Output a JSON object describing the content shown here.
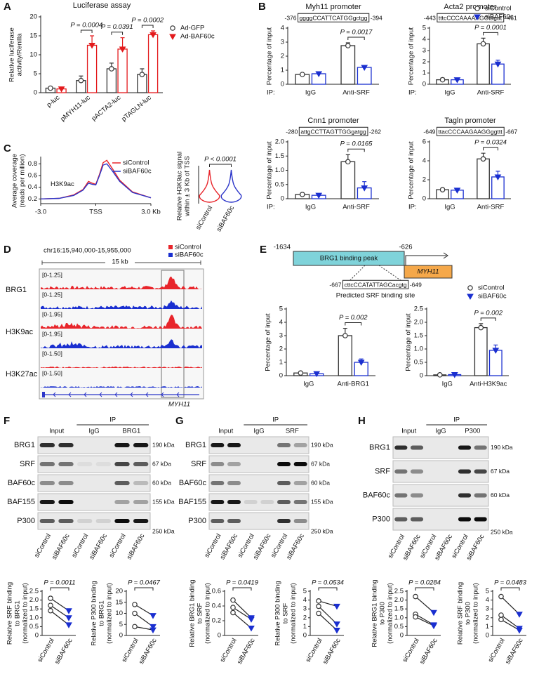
{
  "chart_data": [
    {
      "type": "bar",
      "panel": "A",
      "title": "Luciferase assay",
      "y_label": [
        "Relative luciferase",
        "activity/Renilla"
      ],
      "categories": [
        "p-luc",
        "pMYH11-luc",
        "pACTA2-luc",
        "pTAGLN-luc"
      ],
      "series": [
        {
          "name": "Ad-GFP",
          "color": "#333333",
          "marker": "circle",
          "values": [
            1.2,
            3.2,
            6.3,
            4.8
          ],
          "errors": [
            0.3,
            1.2,
            1.5,
            1.5
          ]
        },
        {
          "name": "Ad-BAF60c",
          "color": "#e31a1c",
          "marker": "triangle",
          "values": [
            1.0,
            12.5,
            11.5,
            15.3
          ],
          "errors": [
            0.2,
            2.5,
            3.0,
            1.0
          ]
        }
      ],
      "ylim": [
        0,
        20
      ],
      "yticks": [
        0,
        5,
        10,
        15,
        20
      ],
      "annotations": [
        "P = 0.0004",
        "P = 0.0391",
        "P = 0.0002"
      ],
      "legend": true
    },
    {
      "type": "bar",
      "panel": "B",
      "title": "Myh11 promoter",
      "sequence": [
        "-376",
        "ggggCCATTCATGGgctgg",
        "-394"
      ],
      "x_prefix": "IP:",
      "y_label": [
        "Percentage of input"
      ],
      "categories": [
        "IgG",
        "Anti-SRF"
      ],
      "series": [
        {
          "color": "#333333",
          "marker": "circle",
          "values": [
            0.7,
            2.75
          ],
          "errors": [
            0.03,
            0.2
          ]
        },
        {
          "color": "#1a2fd0",
          "marker": "triangle",
          "values": [
            0.75,
            1.2
          ],
          "errors": [
            0.1,
            0.1
          ]
        }
      ],
      "ylim": [
        0,
        4
      ],
      "yticks": [
        0,
        1,
        2,
        3,
        4
      ],
      "annotations": [
        "P = 0.0017"
      ],
      "legend": false
    },
    {
      "type": "bar",
      "title": "Acta2 promoter",
      "sequence": [
        "-443",
        "tttcCCCAAAAAGGtagat",
        "-461"
      ],
      "x_prefix": "IP:",
      "y_label": [
        "Percentage of input"
      ],
      "categories": [
        "IgG",
        "Anti-SRF"
      ],
      "series": [
        {
          "name": "siControl",
          "color": "#333333",
          "marker": "circle",
          "values": [
            0.4,
            3.6
          ],
          "errors": [
            0.15,
            0.5
          ]
        },
        {
          "name": "siBAF60c",
          "color": "#1a2fd0",
          "marker": "triangle",
          "values": [
            0.4,
            1.8
          ],
          "errors": [
            0.15,
            0.35
          ]
        }
      ],
      "ylim": [
        0,
        5
      ],
      "yticks": [
        0,
        1,
        2,
        3,
        4,
        5
      ],
      "annotations": [
        "P = 0.0001"
      ],
      "legend": true
    },
    {
      "type": "bar",
      "title": "Cnn1 promoter",
      "sequence": [
        "-280",
        "attgCCTTAGTTGGgatgg",
        "-262"
      ],
      "x_prefix": "IP:",
      "y_label": [
        "Percentage of input"
      ],
      "categories": [
        "IgG",
        "Anti-SRF"
      ],
      "series": [
        {
          "color": "#333333",
          "marker": "circle",
          "values": [
            0.15,
            1.3
          ],
          "errors": [
            0.05,
            0.25
          ]
        },
        {
          "color": "#1a2fd0",
          "marker": "triangle",
          "values": [
            0.12,
            0.38
          ],
          "errors": [
            0.04,
            0.22
          ]
        }
      ],
      "ylim": [
        0,
        2
      ],
      "yticks": [
        0,
        0.5,
        {
          "value": 1,
          "label": "1.0"
        },
        1.5,
        {
          "value": 2,
          "label": "2.0"
        }
      ],
      "annotations": [
        "P = 0.0165"
      ],
      "legend": false
    },
    {
      "type": "bar",
      "title": "Tagln promoter",
      "sequence": [
        "-649",
        "ttacCCCAAGAAGGggttt",
        "-667"
      ],
      "x_prefix": "IP:",
      "y_label": [
        "Percentage of input"
      ],
      "categories": [
        "IgG",
        "Anti-SRF"
      ],
      "series": [
        {
          "color": "#333333",
          "marker": "circle",
          "values": [
            0.95,
            4.2
          ],
          "errors": [
            0.15,
            0.6
          ]
        },
        {
          "color": "#1a2fd0",
          "marker": "triangle",
          "values": [
            0.9,
            2.3
          ],
          "errors": [
            0.2,
            0.6
          ]
        }
      ],
      "ylim": [
        0,
        6
      ],
      "yticks": [
        0,
        2,
        4,
        6
      ],
      "annotations": [
        "P = 0.0324"
      ],
      "legend": false
    },
    {
      "type": "line",
      "panel": "C",
      "y_label": [
        "Average coverage",
        "(reads per million)"
      ],
      "x": [
        -3,
        -2,
        -1.2,
        -0.7,
        -0.4,
        -0.2,
        0,
        0.2,
        0.4,
        0.6,
        0.9,
        1.3,
        2,
        3
      ],
      "series": [
        {
          "name": "siControl",
          "color": "#e8252b",
          "values": [
            0.2,
            0.21,
            0.27,
            0.36,
            0.5,
            0.47,
            0.45,
            0.62,
            0.82,
            0.86,
            0.72,
            0.52,
            0.32,
            0.22
          ]
        },
        {
          "name": "siBAF60c",
          "color": "#2b35c9",
          "values": [
            0.2,
            0.21,
            0.26,
            0.35,
            0.47,
            0.45,
            0.44,
            0.6,
            0.78,
            0.8,
            0.68,
            0.5,
            0.31,
            0.22
          ]
        }
      ],
      "xlim": [
        -3,
        3
      ],
      "xticks": [
        {
          "value": -3,
          "label": "-3.0"
        },
        {
          "value": 0,
          "label": "TSS"
        },
        {
          "value": 3,
          "label": "3.0 Kb"
        }
      ],
      "ylim": [
        0.12,
        0.9
      ],
      "yticks": [
        0.2,
        0.4,
        0.6,
        0.8
      ],
      "annotations": [
        "H3K9ac"
      ],
      "legend": true
    },
    {
      "type": "violin",
      "y_label": [
        "Relative H3K9ac signal",
        "within ± 3 Kb of TSS"
      ],
      "categories": [
        "siControl",
        "siBAF60c"
      ],
      "colors": [
        "#e8252b",
        "#2b35c9"
      ],
      "annotations": [
        "P < 0.0001"
      ]
    },
    {
      "type": "bar",
      "y_label": [
        "Percentage of input"
      ],
      "categories": [
        "IgG",
        "Anti-BRG1"
      ],
      "series": [
        {
          "color": "#333333",
          "marker": "circle",
          "values": [
            0.2,
            3.0
          ],
          "errors": [
            0.05,
            0.55
          ]
        },
        {
          "color": "#1a2fd0",
          "marker": "triangle",
          "values": [
            0.15,
            1.0
          ],
          "errors": [
            0.03,
            0.25
          ]
        }
      ],
      "ylim": [
        0,
        5
      ],
      "yticks": [
        0,
        1,
        2,
        3,
        4,
        5
      ],
      "annotations": [
        "P = 0.002"
      ],
      "legend": false
    },
    {
      "type": "bar",
      "y_label": [
        "Percentage of input"
      ],
      "categories": [
        "IgG",
        "Anti-H3K9ac"
      ],
      "series": [
        {
          "name": "siControl",
          "color": "#333333",
          "marker": "circle",
          "values": [
            0.03,
            1.8
          ],
          "errors": [
            0.01,
            0.15
          ]
        },
        {
          "name": "siBAF60c",
          "color": "#1a2fd0",
          "marker": "triangle",
          "values": [
            0.04,
            0.95
          ],
          "errors": [
            0.01,
            0.2
          ]
        }
      ],
      "ylim": [
        0,
        2.5
      ],
      "yticks": [
        0,
        0.5,
        {
          "value": 1,
          "label": "1.0"
        },
        1.5,
        {
          "value": 2,
          "label": "2.0"
        },
        2.5
      ],
      "annotations": [
        "P = 0.002"
      ],
      "legend": true
    },
    {
      "type": "paired",
      "y_label": [
        "Relative SRF binding",
        "to BRG1",
        "(normalized to input)"
      ],
      "categories": [
        "siControl",
        "siBAF60c"
      ],
      "category_colors": [
        "#333333",
        "#1a2fd0"
      ],
      "series": [
        {
          "values": [
            2.1,
            1.4
          ]
        },
        {
          "values": [
            1.7,
            1.0
          ]
        },
        {
          "values": [
            1.4,
            0.6
          ]
        }
      ],
      "ylim": [
        0,
        2.5
      ],
      "yticks": [
        0,
        0.5,
        {
          "value": 1,
          "label": "1.0"
        },
        1.5,
        {
          "value": 2,
          "label": "2.0"
        },
        2.5
      ],
      "annotations": [
        "P = 0.0011"
      ]
    },
    {
      "type": "paired",
      "y_label": [
        "Relative P300 binding",
        "to BRG1",
        "(normalized to input)"
      ],
      "categories": [
        "siControl",
        "siBAF60c"
      ],
      "category_colors": [
        "#333333",
        "#1a2fd0"
      ],
      "series": [
        {
          "values": [
            14,
            9
          ]
        },
        {
          "values": [
            10,
            4
          ]
        },
        {
          "values": [
            4,
            2.5
          ]
        }
      ],
      "ylim": [
        0,
        20
      ],
      "yticks": [
        0,
        5,
        10,
        15,
        20
      ],
      "annotations": [
        "P = 0.0467"
      ]
    },
    {
      "type": "paired",
      "y_label": [
        "Relative BRG1 binding",
        "to SRF",
        "(normalized to input)"
      ],
      "categories": [
        "siControl",
        "siBAF60c"
      ],
      "category_colors": [
        "#333333",
        "#1a2fd0"
      ],
      "series": [
        {
          "values": [
            0.48,
            0.24
          ]
        },
        {
          "values": [
            0.38,
            0.22
          ]
        },
        {
          "values": [
            0.31,
            0.1
          ]
        }
      ],
      "ylim": [
        0,
        0.6
      ],
      "yticks": [
        0,
        0.2,
        0.4,
        0.6
      ],
      "annotations": [
        "P = 0.0419"
      ]
    },
    {
      "type": "paired",
      "y_label": [
        "Relative P300 binding",
        "to SRF",
        "(normalized to input)"
      ],
      "categories": [
        "siControl",
        "siBAF60c"
      ],
      "category_colors": [
        "#333333",
        "#1a2fd0"
      ],
      "series": [
        {
          "values": [
            3.9,
            3.3
          ]
        },
        {
          "values": [
            3.3,
            1.3
          ]
        },
        {
          "values": [
            2.5,
            0.6
          ]
        }
      ],
      "ylim": [
        0,
        5
      ],
      "yticks": [
        0,
        1,
        2,
        3,
        4,
        5
      ],
      "annotations": [
        "P = 0.0534"
      ]
    },
    {
      "type": "paired",
      "y_label": [
        "Relative BRG1 binding",
        "to P300",
        "(normalized to input)"
      ],
      "categories": [
        "siControl",
        "siBAF60c"
      ],
      "category_colors": [
        "#333333",
        "#1a2fd0"
      ],
      "series": [
        {
          "values": [
            2.2,
            1.3
          ]
        },
        {
          "values": [
            1.2,
            0.6
          ]
        },
        {
          "values": [
            1.05,
            0.55
          ]
        }
      ],
      "ylim": [
        0,
        2.5
      ],
      "yticks": [
        0,
        0.5,
        {
          "value": 1,
          "label": "1.0"
        },
        1.5,
        {
          "value": 2,
          "label": "2.0"
        },
        2.5
      ],
      "annotations": [
        "P = 0.0284"
      ]
    },
    {
      "type": "paired",
      "y_label": [
        "Relative SRF binding",
        "to P300",
        "(normalized to input)"
      ],
      "categories": [
        "siControl",
        "siBAF60c"
      ],
      "category_colors": [
        "#333333",
        "#1a2fd0"
      ],
      "series": [
        {
          "values": [
            4.4,
            2.4
          ]
        },
        {
          "values": [
            2.3,
            0.8
          ]
        },
        {
          "values": [
            1.8,
            0.6
          ]
        }
      ],
      "ylim": [
        0,
        5
      ],
      "yticks": [
        0,
        1,
        2,
        3,
        4,
        5
      ],
      "annotations": [
        "P = 0.0483"
      ]
    }
  ],
  "genome_browser": {
    "panel": "D",
    "region": "chr16:15,940,000-15,955,000",
    "scale": "15 kb",
    "legend": [
      {
        "name": "siControl",
        "color": "#e8252b"
      },
      {
        "name": "siBAF60c",
        "color": "#1a2fd0"
      }
    ],
    "tracks": [
      {
        "label": "BRG1",
        "ranges": [
          "[0-1.25]",
          "[0-1.25]"
        ]
      },
      {
        "label": "H3K9ac",
        "ranges": [
          "[0-1.95]",
          "[0-1.95]"
        ]
      },
      {
        "label": "H3K27ac",
        "ranges": [
          "[0-1.50]",
          "[0-1.50]"
        ]
      }
    ],
    "gene": "MYH11"
  },
  "promoter_diagram": {
    "panel": "E",
    "start": "-1634",
    "end": "-626",
    "peak": "BRG1 binding peak",
    "gene": "MYH11",
    "sequence": [
      "-667",
      "cttcCCATATTAGCacgtg",
      "-649"
    ],
    "site": "Predicted SRF binding site"
  },
  "blots": [
    {
      "panel": "F",
      "headers": [
        "Input",
        "IP",
        "IgG",
        "BRG1"
      ],
      "rows": [
        {
          "label": "BRG1",
          "kda": "190 kDa"
        },
        {
          "label": "SRF",
          "kda": "67 kDa"
        },
        {
          "label": "BAF60c",
          "kda": "60 kDa"
        },
        {
          "label": "BAF155",
          "kda": "155 kDa"
        },
        {
          "label": "P300",
          "kda": "250 kDa"
        }
      ],
      "lanes": [
        "siControl",
        "siBAF60c",
        "siControl",
        "siBAF60c",
        "siControl",
        "siBAF60c"
      ]
    },
    {
      "panel": "G",
      "headers": [
        "Input",
        "IP",
        "IgG",
        "SRF"
      ],
      "rows": [
        {
          "label": "BRG1",
          "kda": "190 kDa"
        },
        {
          "label": "SRF",
          "kda": "67 kDa"
        },
        {
          "label": "BAF60c",
          "kda": "60 kDa"
        },
        {
          "label": "BAF155",
          "kda": "155 kDa"
        },
        {
          "label": "P300",
          "kda": "250 kDa"
        }
      ],
      "lanes": [
        "siControl",
        "siBAF60c",
        "siControl",
        "siBAF60c",
        "siControl",
        "siBAF60c"
      ]
    },
    {
      "panel": "H",
      "headers": [
        "Input",
        "IP",
        "IgG",
        "P300"
      ],
      "rows": [
        {
          "label": "BRG1",
          "kda": "190 kDa"
        },
        {
          "label": "SRF",
          "kda": "67 kDa"
        },
        {
          "label": "BAF60c",
          "kda": "60 kDa"
        },
        {
          "label": "P300",
          "kda": "250 kDa"
        }
      ],
      "lanes": [
        "siControl",
        "siBAF60c",
        "siControl",
        "siBAF60c",
        "siControl",
        "siBAF60c"
      ]
    }
  ]
}
